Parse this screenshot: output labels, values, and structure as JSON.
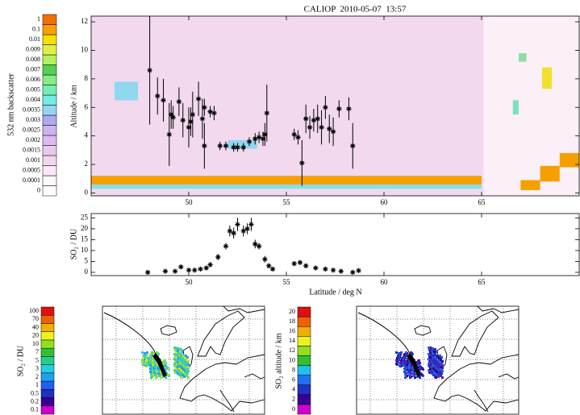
{
  "chart_data": [
    {
      "type": "scatter",
      "title": "CALIOP  2010-05-07  13:57",
      "ylabel": "Altitude / km",
      "xlim": [
        45,
        70
      ],
      "ylim": [
        -0.2,
        12.4
      ],
      "xticks": [
        50,
        55,
        60,
        65
      ],
      "yticks": [
        0,
        2,
        4,
        6,
        8,
        10,
        12
      ],
      "x": [
        48.0,
        48.4,
        48.7,
        49.0,
        49.1,
        49.2,
        49.5,
        49.7,
        50.0,
        50.1,
        50.2,
        50.5,
        50.7,
        50.8,
        50.8,
        51.1,
        51.3,
        51.6,
        51.9,
        52.3,
        52.5,
        52.8,
        53.1,
        53.4,
        53.6,
        53.8,
        53.9,
        54.0,
        55.4,
        55.6,
        55.8,
        56.0,
        56.2,
        56.4,
        56.6,
        56.8,
        57.0,
        57.2,
        57.4,
        57.7,
        58.2,
        58.4
      ],
      "series": [
        {
          "color": "#000000",
          "values": [
            8.6,
            6.8,
            6.5,
            4.1,
            5.5,
            5.3,
            6.4,
            5.1,
            4.6,
            5.0,
            5.5,
            6.6,
            5.2,
            3.3,
            6.0,
            5.7,
            5.6,
            3.3,
            3.3,
            3.2,
            3.2,
            3.2,
            3.6,
            3.8,
            3.9,
            3.8,
            4.1,
            5.6,
            4.1,
            3.9,
            2.1,
            5.2,
            4.6,
            5.1,
            5.2,
            4.6,
            6.0,
            4.5,
            4.3,
            5.9,
            5.9,
            3.3
          ],
          "errors": [
            3.8,
            1.3,
            1.5,
            2.2,
            1.0,
            0.8,
            1.0,
            1.2,
            1.4,
            1.0,
            1.6,
            1.2,
            1.4,
            1.6,
            0.6,
            0.4,
            0.5,
            0.3,
            0.3,
            0.3,
            0.3,
            0.3,
            0.3,
            0.4,
            0.4,
            0.5,
            0.8,
            2.0,
            0.4,
            0.5,
            1.6,
            1.0,
            0.8,
            0.8,
            1.0,
            1.2,
            0.8,
            1.0,
            1.0,
            0.6,
            0.8,
            1.6
          ]
        }
      ],
      "layers": [
        {
          "lat": [
            65.1,
            70
          ],
          "alt": [
            -0.2,
            12.4
          ],
          "color": "#fbf0f8"
        },
        {
          "lat": [
            45,
            65
          ],
          "alt": [
            0.3,
            0.6
          ],
          "color": "#86dfe6"
        },
        {
          "lat": [
            45,
            65
          ],
          "alt": [
            0.6,
            1.2
          ],
          "color": "#f5a000"
        },
        {
          "lat": [
            67,
            68
          ],
          "alt": [
            0.2,
            0.9
          ],
          "color": "#f5a000"
        },
        {
          "lat": [
            68,
            69
          ],
          "alt": [
            0.8,
            1.9
          ],
          "color": "#f5a000"
        },
        {
          "lat": [
            69,
            70
          ],
          "alt": [
            1.8,
            2.8
          ],
          "color": "#f5a000"
        },
        {
          "lat": [
            46.2,
            47.4
          ],
          "alt": [
            6.5,
            7.8
          ],
          "color": "#8fd8ef"
        },
        {
          "lat": [
            52,
            53.5
          ],
          "alt": [
            3.1,
            3.7
          ],
          "color": "#8fd8ef"
        },
        {
          "lat": [
            66.6,
            66.9
          ],
          "alt": [
            5.5,
            6.5
          ],
          "color": "#7fe0c0"
        },
        {
          "lat": [
            66.9,
            67.3
          ],
          "alt": [
            9.2,
            9.8
          ],
          "color": "#8fe0a0"
        },
        {
          "lat": [
            68.1,
            68.6
          ],
          "alt": [
            7.3,
            8.8
          ],
          "color": "#f2e030"
        }
      ],
      "colorbar": {
        "label": "532 nm backscatter",
        "ticks": [
          0,
          0.0001,
          0.0005,
          0.001,
          0.0015,
          0.002,
          0.0025,
          0.003,
          0.0035,
          0.004,
          0.005,
          0.006,
          0.007,
          0.008,
          0.009,
          0.01,
          0.1,
          1
        ],
        "colors": [
          "#ffffff",
          "#fff8fd",
          "#fbe8f6",
          "#f3d6ef",
          "#e8c8ec",
          "#dcbcf0",
          "#ccb4f0",
          "#aeaaf0",
          "#96d6f2",
          "#72ece4",
          "#74eeb4",
          "#84ee84",
          "#54d054",
          "#b4f060",
          "#e2f044",
          "#f8e000",
          "#f8a000",
          "#f07000"
        ]
      }
    },
    {
      "type": "scatter",
      "ylabel": "SO₂ / DU",
      "xlabel": "Latitude / deg N",
      "xlim": [
        45,
        70
      ],
      "ylim": [
        -1.5,
        27
      ],
      "xticks": [
        50,
        55,
        60,
        65
      ],
      "yticks": [
        0,
        5,
        10,
        15,
        20,
        25
      ],
      "x": [
        47.9,
        48.8,
        49.3,
        49.6,
        50.0,
        50.3,
        50.6,
        50.9,
        51.1,
        51.5,
        51.9,
        52.1,
        52.3,
        52.5,
        52.8,
        53.0,
        53.2,
        53.4,
        53.6,
        53.9,
        54.1,
        54.3,
        55.4,
        55.7,
        56.0,
        56.5,
        57.0,
        57.4,
        57.8,
        58.4,
        58.7
      ],
      "series": [
        {
          "color": "#000000",
          "values": [
            0,
            0.5,
            0.5,
            2.5,
            1,
            1,
            1.5,
            2,
            3.5,
            7,
            12,
            19,
            18,
            22,
            19,
            20,
            22,
            13,
            12,
            6,
            3,
            1.5,
            4,
            4.5,
            3,
            2,
            1.5,
            1,
            0.5,
            0,
            0.8
          ],
          "errors": [
            0.5,
            0.5,
            0.5,
            0.8,
            0.5,
            0.5,
            0.5,
            0.8,
            1,
            1.5,
            1.5,
            2.5,
            2.5,
            3,
            2.5,
            2.5,
            3,
            2,
            1.5,
            1.5,
            1,
            0.8,
            1,
            1,
            0.8,
            0.6,
            0.6,
            0.5,
            0.5,
            0.5,
            0.5
          ]
        }
      ]
    },
    {
      "type": "map",
      "colorbar": {
        "label": "SO₂ / DU",
        "ticks": [
          0.1,
          0.2,
          0.5,
          1,
          2,
          3,
          5,
          7,
          10,
          20,
          40,
          70,
          100
        ],
        "colors": [
          "#d000d0",
          "#3a0090",
          "#2030c0",
          "#2060f0",
          "#20a0f0",
          "#20d0e0",
          "#20d090",
          "#30c030",
          "#90e020",
          "#f0f020",
          "#f0b000",
          "#f06000",
          "#e01010"
        ]
      }
    },
    {
      "type": "map",
      "colorbar": {
        "label": "SO₂ altitude / km",
        "ticks": [
          0,
          2,
          4,
          6,
          8,
          10,
          12,
          14,
          16,
          18,
          20
        ],
        "colors": [
          "#d000d0",
          "#3a0090",
          "#2030c0",
          "#2070f0",
          "#20c0f0",
          "#30c030",
          "#90e020",
          "#f0f020",
          "#f0b000",
          "#f06000",
          "#e01010"
        ]
      }
    }
  ]
}
